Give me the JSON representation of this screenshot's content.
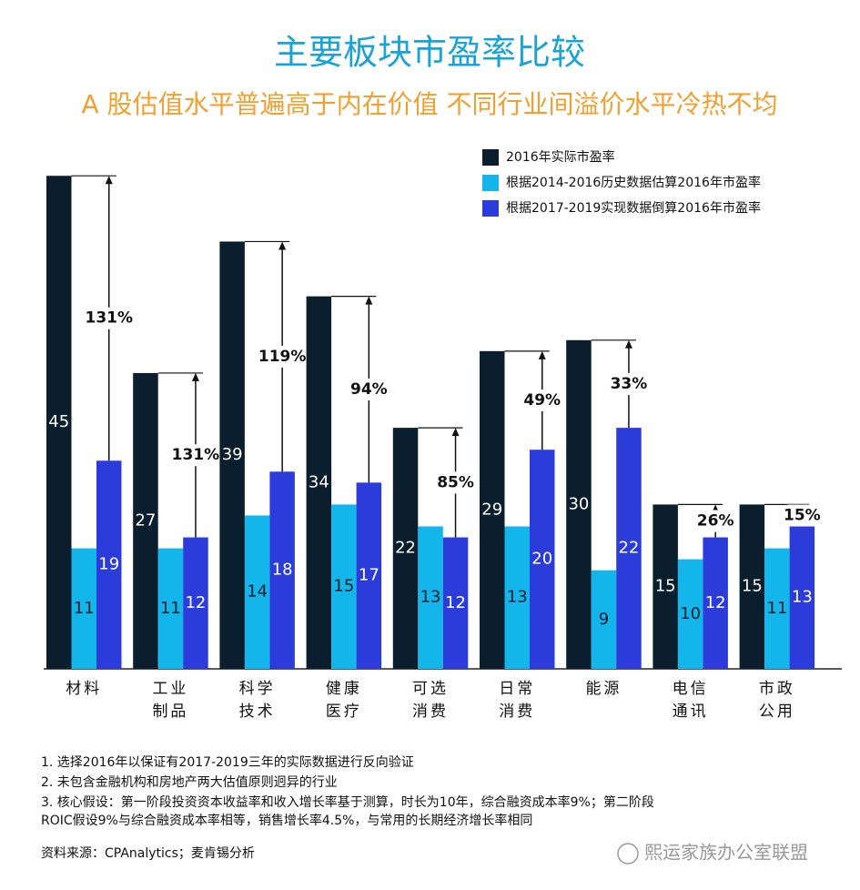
{
  "chart_data": {
    "type": "bar",
    "title": "主要板块市盈率比较",
    "subtitle": "A 股估值水平普遍高于内在价值 不同行业间溢价水平冷热不均",
    "categories": [
      "材料",
      "工业\n制品",
      "科学\n技术",
      "健康\n医疗",
      "可选\n消费",
      "日常\n消费",
      "能源",
      "电信\n通讯",
      "市政\n公用"
    ],
    "series": [
      {
        "name": "2016年实际市盈率",
        "color": "#0b1e2d",
        "values": [
          45,
          27,
          39,
          34,
          22,
          29,
          30,
          15,
          15
        ]
      },
      {
        "name": "根据2014-2016历史数据估算2016年市盈率",
        "color": "#13b5ea",
        "values": [
          11,
          11,
          14,
          15,
          13,
          13,
          9,
          10,
          11
        ]
      },
      {
        "name": "根据2017-2019实现数据倒算2016年市盈率",
        "color": "#2b3cdb",
        "values": [
          19,
          12,
          18,
          17,
          12,
          20,
          22,
          12,
          13
        ]
      }
    ],
    "premiums": {
      "values": [
        131,
        131,
        119,
        94,
        85,
        49,
        33,
        26,
        15
      ],
      "value_labels": [
        "131%",
        "131%",
        "119%",
        "94%",
        "85%",
        "49%",
        "33%",
        "26%",
        "15%"
      ]
    },
    "ylim": [
      0,
      50
    ],
    "notes": [
      "1. 选择2016年以保证有2017-2019三年的实际数据进行反向验证",
      "2. 未包含金融机构和房地产两大估值原则迥异的行业",
      "3. 核心假设：第一阶段投资资本收益率和收入增长率基于测算，时长为10年，综合融资成本率9%；第二阶段",
      "ROIC假设9%与综合融资成本率相等，销售增长率4.5%，与常用的长期经济增长率相同"
    ],
    "source": "资料来源：CPAnalytics；麦肯锡分析",
    "watermark": "熙运家族办公室联盟"
  }
}
